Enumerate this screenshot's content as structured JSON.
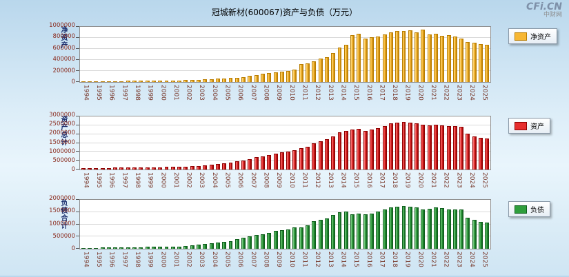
{
  "header": {
    "title": "冠城新材(600067)资产与负债（万元）",
    "logo": "CFi.CN",
    "logo_sub": "中财网"
  },
  "chart_data": [
    {
      "type": "bar",
      "name": "net-assets",
      "ylabel": "净资产",
      "legend": "净资产",
      "color": "#f7b733",
      "color_light": "#ffe08a",
      "color_dark": "#b97d00",
      "ylim": [
        0,
        1000000
      ],
      "yticks": [
        0,
        200000,
        400000,
        600000,
        800000,
        1000000
      ],
      "bars_per_year": 2,
      "years": [
        1994,
        1995,
        1996,
        1997,
        1998,
        1999,
        2000,
        2001,
        2002,
        2003,
        2004,
        2005,
        2006,
        2007,
        2008,
        2009,
        2010,
        2011,
        2012,
        2013,
        2014,
        2015,
        2016,
        2017,
        2018,
        2019,
        2020,
        2021,
        2022,
        2023,
        2024,
        2025
      ],
      "values": [
        8000,
        10000,
        12000,
        15000,
        15000,
        18000,
        18000,
        20000,
        20000,
        22000,
        22000,
        25000,
        25000,
        28000,
        28000,
        30000,
        32000,
        35000,
        40000,
        50000,
        55000,
        60000,
        65000,
        70000,
        80000,
        90000,
        110000,
        130000,
        150000,
        160000,
        170000,
        190000,
        200000,
        220000,
        320000,
        340000,
        380000,
        420000,
        450000,
        520000,
        620000,
        680000,
        850000,
        870000,
        790000,
        810000,
        830000,
        860000,
        900000,
        930000,
        920000,
        940000,
        900000,
        950000,
        860000,
        870000,
        840000,
        850000,
        820000,
        790000,
        730000,
        710000,
        690000,
        670000
      ]
    },
    {
      "type": "bar",
      "name": "total-assets",
      "ylabel": "资产总计",
      "legend": "资产",
      "color": "#e62e2e",
      "color_light": "#ff8a8a",
      "color_dark": "#8f0000",
      "ylim": [
        0,
        3000000
      ],
      "yticks": [
        0,
        500000,
        1000000,
        1500000,
        2000000,
        2500000,
        3000000
      ],
      "bars_per_year": 2,
      "years": [
        1994,
        1995,
        1996,
        1997,
        1998,
        1999,
        2000,
        2001,
        2002,
        2003,
        2004,
        2005,
        2006,
        2007,
        2008,
        2009,
        2010,
        2011,
        2012,
        2013,
        2014,
        2015,
        2016,
        2017,
        2018,
        2019,
        2020,
        2021,
        2022,
        2023,
        2024,
        2025
      ],
      "values": [
        60000,
        75000,
        80000,
        90000,
        95000,
        100000,
        105000,
        110000,
        115000,
        120000,
        125000,
        130000,
        135000,
        140000,
        145000,
        150000,
        160000,
        180000,
        200000,
        230000,
        280000,
        310000,
        350000,
        390000,
        450000,
        510000,
        600000,
        690000,
        750000,
        810000,
        900000,
        960000,
        1000000,
        1110000,
        1200000,
        1290000,
        1500000,
        1590000,
        1710000,
        1890000,
        2100000,
        2190000,
        2250000,
        2310000,
        2190000,
        2250000,
        2340000,
        2460000,
        2610000,
        2640000,
        2700000,
        2640000,
        2610000,
        2550000,
        2490000,
        2550000,
        2490000,
        2460000,
        2460000,
        2400000,
        2010000,
        1890000,
        1800000,
        1740000
      ]
    },
    {
      "type": "bar",
      "name": "total-liabilities",
      "ylabel": "负债合计",
      "legend": "负债",
      "color": "#2f9e3c",
      "color_light": "#8fd696",
      "color_dark": "#0e5e1c",
      "ylim": [
        0,
        2000000
      ],
      "yticks": [
        0,
        500000,
        1000000,
        1500000,
        2000000
      ],
      "bars_per_year": 2,
      "years": [
        1994,
        1995,
        1996,
        1997,
        1998,
        1999,
        2000,
        2001,
        2002,
        2003,
        2004,
        2005,
        2006,
        2007,
        2008,
        2009,
        2010,
        2011,
        2012,
        2013,
        2014,
        2015,
        2016,
        2017,
        2018,
        2019,
        2020,
        2021,
        2022,
        2023,
        2024,
        2025
      ],
      "values": [
        30000,
        38000,
        42000,
        46000,
        50000,
        54000,
        58000,
        62000,
        66000,
        70000,
        74000,
        78000,
        82000,
        86000,
        90000,
        95000,
        110000,
        130000,
        160000,
        190000,
        230000,
        260000,
        290000,
        320000,
        390000,
        440000,
        500000,
        560000,
        600000,
        640000,
        730000,
        760000,
        800000,
        880000,
        880000,
        950000,
        1120000,
        1180000,
        1240000,
        1380000,
        1480000,
        1520000,
        1400000,
        1430000,
        1400000,
        1440000,
        1520000,
        1600000,
        1700000,
        1720000,
        1760000,
        1710000,
        1700000,
        1600000,
        1640000,
        1680000,
        1660000,
        1600000,
        1620000,
        1600000,
        1260000,
        1180000,
        1100000,
        1080000
      ]
    }
  ]
}
